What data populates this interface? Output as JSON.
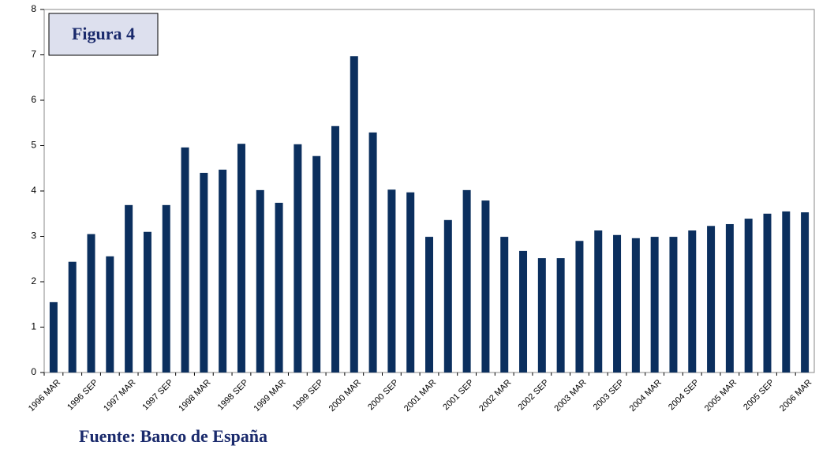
{
  "chart_data": {
    "type": "bar",
    "title": "Figura 4",
    "source": "Fuente: Banco de España",
    "categories": [
      "1996 MAR",
      null,
      "1996 SEP",
      null,
      "1997 MAR",
      null,
      "1997 SEP",
      null,
      "1998 MAR",
      null,
      "1998 SEP",
      null,
      "1999 MAR",
      null,
      "1999 SEP",
      null,
      "2000 MAR",
      null,
      "2000 SEP",
      null,
      "2001 MAR",
      null,
      "2001 SEP",
      null,
      "2002 MAR",
      null,
      "2002 SEP",
      null,
      "2003 MAR",
      null,
      "2003 SEP",
      null,
      "2004 MAR",
      null,
      "2004 SEP",
      null,
      "2005 MAR",
      null,
      "2005 SEP",
      null,
      "2006 MAR"
    ],
    "values": [
      1.55,
      2.44,
      3.05,
      2.56,
      3.69,
      3.1,
      3.69,
      4.96,
      4.4,
      4.47,
      5.04,
      4.02,
      3.74,
      5.03,
      4.77,
      5.43,
      6.97,
      5.29,
      4.03,
      3.97,
      2.99,
      3.36,
      4.02,
      3.79,
      2.99,
      2.68,
      2.52,
      2.52,
      2.9,
      3.13,
      3.03,
      2.96,
      2.99,
      2.99,
      3.13,
      3.23,
      3.27,
      3.39,
      3.5,
      3.55,
      3.53
    ],
    "color": "#0b2f5e",
    "ylim": [
      0,
      8
    ],
    "yticks": [
      0,
      1,
      2,
      3,
      4,
      5,
      6,
      7,
      8
    ],
    "grid": false
  }
}
